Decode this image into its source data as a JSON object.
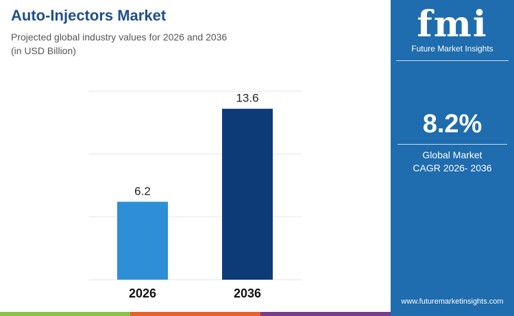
{
  "header": {
    "title": "Auto-Injectors Market",
    "subtitle_line1": "Projected global industry values for 2026 and 2036",
    "subtitle_line2": "(in USD Billion)"
  },
  "panel": {
    "logo_text": "fmi",
    "logo_subtitle": "Future Market Insights",
    "cagr": "8.2%",
    "cagr_label_1": "Global Market",
    "cagr_label_2": "CAGR 2026- 2036",
    "url": "www.futuremarketinsights.com",
    "bg_color": "#1f6cae"
  },
  "stripe_colors": [
    "#8bc34a",
    "#e8602c",
    "#7b3a8c"
  ],
  "chart_data": {
    "type": "bar",
    "categories": [
      "2026",
      "2036"
    ],
    "values": [
      6.2,
      13.6
    ],
    "data_labels": [
      "6.2",
      "13.6"
    ],
    "colors": [
      "#2e8fd6",
      "#0d3b78"
    ],
    "ylim": [
      0,
      15
    ],
    "grid": true,
    "gridlines": [
      0,
      5,
      10,
      15
    ],
    "title": "Auto-Injectors Market",
    "xlabel": "",
    "ylabel": ""
  }
}
